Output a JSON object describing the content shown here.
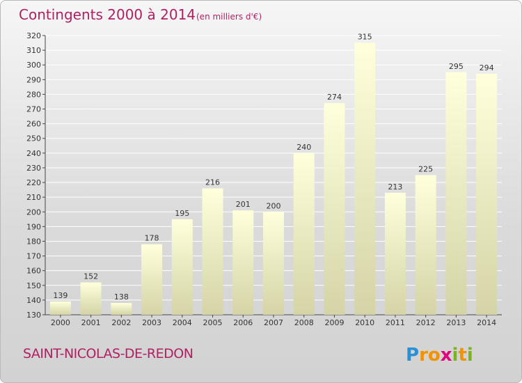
{
  "chart_data": {
    "type": "bar",
    "title": "Contingents 2000 à 2014",
    "subtitle": "(en milliers d'€)",
    "categories": [
      "2000",
      "2001",
      "2002",
      "2003",
      "2004",
      "2005",
      "2006",
      "2007",
      "2008",
      "2009",
      "2010",
      "2011",
      "2012",
      "2013",
      "2014"
    ],
    "values": [
      139,
      152,
      138,
      178,
      195,
      216,
      201,
      200,
      240,
      274,
      315,
      213,
      225,
      295,
      294
    ],
    "ylim": [
      130,
      320
    ],
    "yticks": [
      130,
      140,
      150,
      160,
      170,
      180,
      190,
      200,
      210,
      220,
      230,
      240,
      250,
      260,
      270,
      280,
      290,
      300,
      310,
      320
    ],
    "grid": true,
    "xlabel": "",
    "ylabel": ""
  },
  "footer": {
    "commune": "SAINT-NICOLAS-DE-REDON",
    "logo_letters": [
      "P",
      "r",
      "o",
      "x",
      "i",
      "t",
      "i"
    ],
    "logo_colors": [
      "#2a8fd6",
      "#f39200",
      "#f39200",
      "#e3007e",
      "#7ab51d",
      "#f39200",
      "#7ab51d"
    ]
  },
  "colors": {
    "accent": "#b01f62",
    "bar_top": "#ffffdc",
    "bar_bottom": "#d4d4a6"
  }
}
